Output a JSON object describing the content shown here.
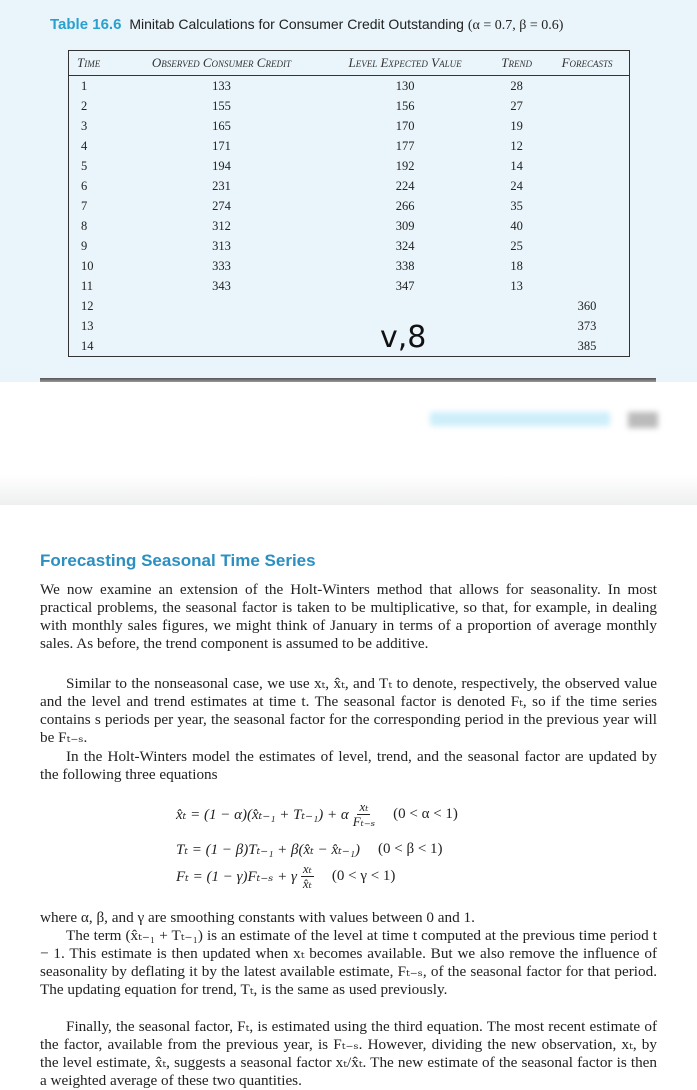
{
  "table": {
    "label": "Table 16.6",
    "title": "Minitab Calculations for Consumer Credit Outstanding",
    "params": "(α = 0.7, β = 0.6)",
    "headers": [
      "Time",
      "Observed Consumer Credit",
      "Level Expected Value",
      "Trend",
      "Forecasts"
    ],
    "rows": [
      [
        "1",
        "133",
        "130",
        "28",
        ""
      ],
      [
        "2",
        "155",
        "156",
        "27",
        ""
      ],
      [
        "3",
        "165",
        "170",
        "19",
        ""
      ],
      [
        "4",
        "171",
        "177",
        "12",
        ""
      ],
      [
        "5",
        "194",
        "192",
        "14",
        ""
      ],
      [
        "6",
        "231",
        "224",
        "24",
        ""
      ],
      [
        "7",
        "274",
        "266",
        "35",
        ""
      ],
      [
        "8",
        "312",
        "309",
        "40",
        ""
      ],
      [
        "9",
        "313",
        "324",
        "25",
        ""
      ],
      [
        "10",
        "333",
        "338",
        "18",
        ""
      ],
      [
        "11",
        "343",
        "347",
        "13",
        ""
      ],
      [
        "12",
        "",
        "",
        "",
        "360"
      ],
      [
        "13",
        "",
        "",
        "",
        "373"
      ],
      [
        "14",
        "",
        "",
        "",
        "385"
      ]
    ]
  },
  "overlay_text": "v,8",
  "section": {
    "heading": "Forecasting Seasonal Time Series",
    "p1": "We now examine an extension of the Holt-Winters method that allows for seasonality. In most practical problems, the seasonal factor is taken to be multiplicative, so that, for example, in dealing with monthly sales figures, we might think of January in terms of a proportion of average monthly sales. As before, the trend component is assumed to be additive.",
    "p2": "Similar to the nonseasonal case, we use xₜ, x̂ₜ, and Tₜ to denote, respectively, the observed value and the level and trend estimates at time t. The seasonal factor is denoted Fₜ, so if the time series contains s periods per year, the seasonal factor for the corresponding period in the previous year will be Fₜ₋ₛ.",
    "p3": "In the Holt-Winters model the estimates of level, trend, and the seasonal factor are updated by the following three equations",
    "eq1": {
      "lhs": "x̂ₜ = (1 − α)(x̂ₜ₋₁ + Tₜ₋₁) + α",
      "num": "xₜ",
      "den": "Fₜ₋ₛ",
      "cond": "(0 < α < 1)"
    },
    "eq2": {
      "lhs": "Tₜ = (1 − β)Tₜ₋₁ + β(x̂ₜ − x̂ₜ₋₁)",
      "cond": "(0 < β < 1)"
    },
    "eq3": {
      "lhs": "Fₜ = (1 − γ)Fₜ₋ₛ + γ",
      "num": "xₜ",
      "den": "x̂ₜ",
      "cond": "(0 < γ < 1)"
    },
    "p4": "where α, β, and γ are smoothing constants with values between 0 and 1.",
    "p5": "The term (x̂ₜ₋₁ + Tₜ₋₁) is an estimate of the level at time t computed at the previous time period t − 1. This estimate is then updated when xₜ becomes available. But we also remove the influence of seasonality by deflating it by the latest available estimate, Fₜ₋ₛ, of the seasonal factor for that period. The updating equation for trend, Tₜ, is the same as used previously.",
    "p6": "Finally, the seasonal factor, Fₜ, is estimated using the third equation. The most recent estimate of the factor, available from the previous year, is Fₜ₋ₛ. However, dividing the new observation, xₜ, by the level estimate, x̂ₜ, suggests a seasonal factor xₜ/x̂ₜ. The new estimate of the seasonal factor is then a weighted average of these two quantities."
  }
}
